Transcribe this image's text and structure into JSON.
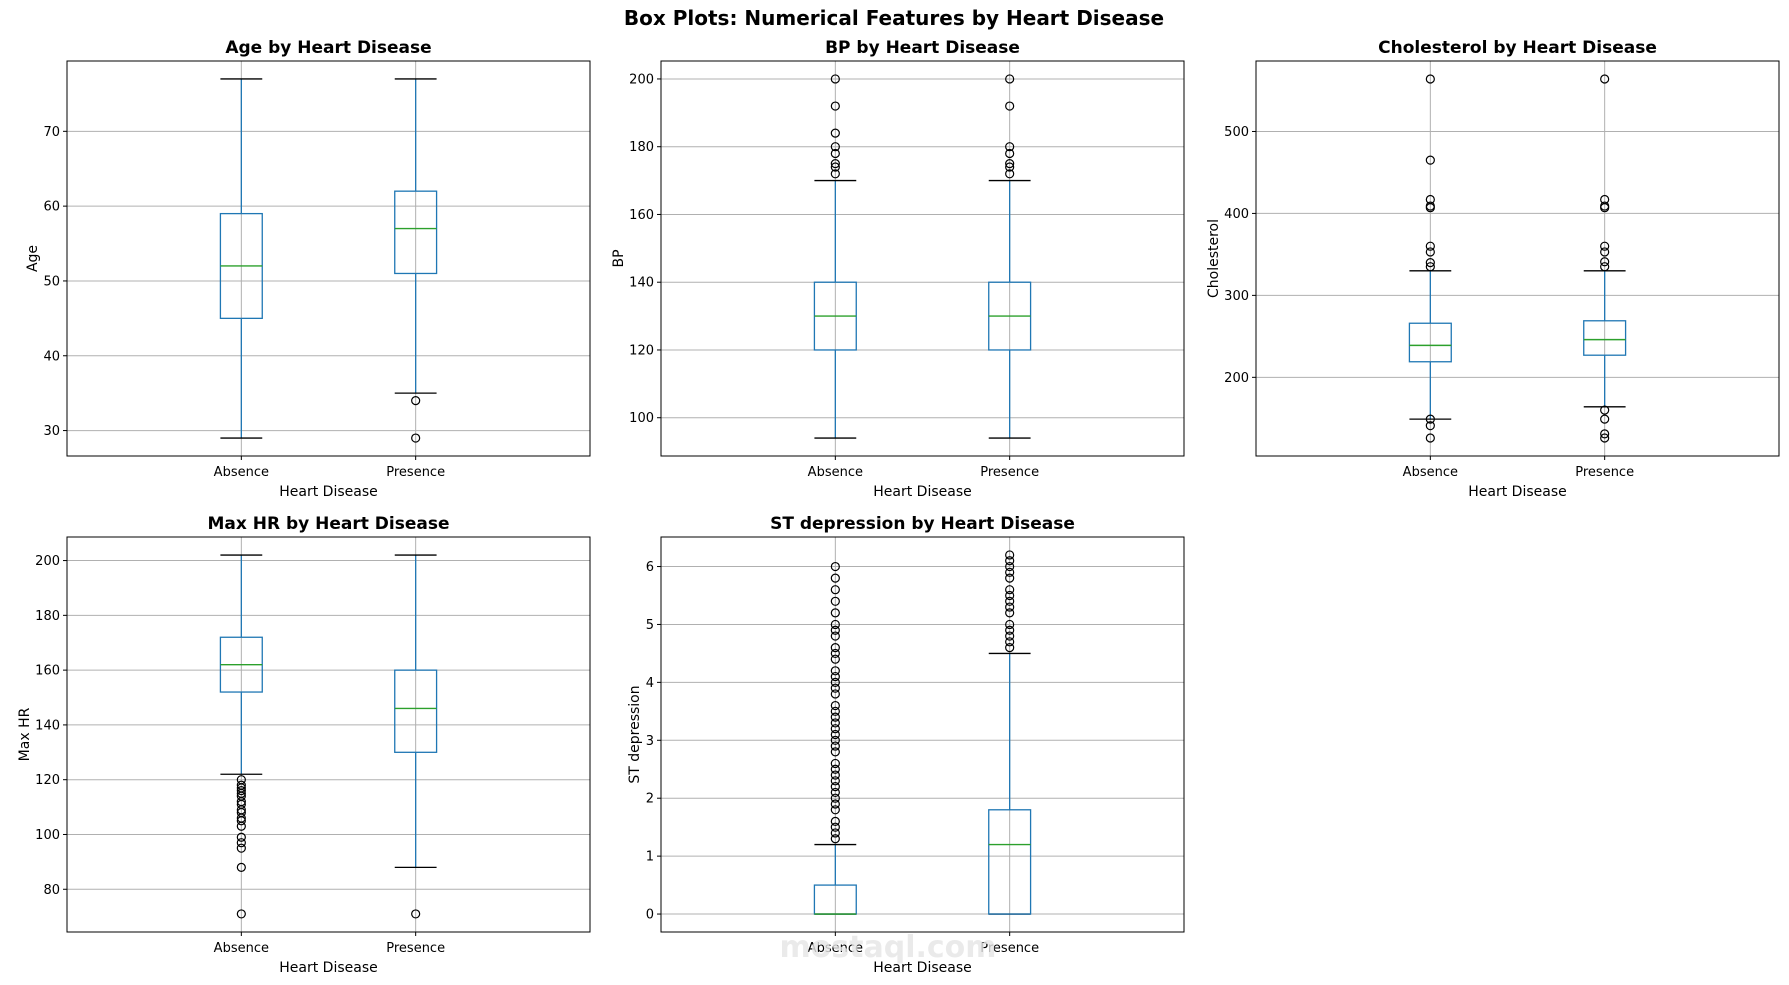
{
  "figure": {
    "suptitle": "Box Plots: Numerical Features by Heart Disease",
    "watermark": "mostaql.com"
  },
  "colors": {
    "box": "#1f77b4",
    "median": "#2ca02c",
    "grid": "#b0b0b0",
    "flier": "#000000"
  },
  "chart_data": [
    {
      "type": "box",
      "title": "Age by Heart Disease",
      "xlabel": "Heart Disease",
      "ylabel": "Age",
      "categories": [
        "Absence",
        "Presence"
      ],
      "ylim": [
        26.6,
        79.4
      ],
      "yticks": [
        30,
        40,
        50,
        60,
        70
      ],
      "grid": true,
      "boxes": [
        {
          "category": "Absence",
          "whisker_low": 29,
          "q1": 45,
          "median": 52,
          "q3": 59,
          "whisker_high": 77,
          "fliers": []
        },
        {
          "category": "Presence",
          "whisker_low": 35,
          "q1": 51,
          "median": 57,
          "q3": 62,
          "whisker_high": 77,
          "fliers": [
            34,
            29
          ]
        }
      ]
    },
    {
      "type": "box",
      "title": "BP by Heart Disease",
      "xlabel": "Heart Disease",
      "ylabel": "BP",
      "categories": [
        "Absence",
        "Presence"
      ],
      "ylim": [
        88.7,
        205.3
      ],
      "yticks": [
        100,
        120,
        140,
        160,
        180,
        200
      ],
      "grid": true,
      "boxes": [
        {
          "category": "Absence",
          "whisker_low": 94,
          "q1": 120,
          "median": 130,
          "q3": 140,
          "whisker_high": 170,
          "fliers": [
            172,
            174,
            175,
            178,
            180,
            184,
            192,
            200
          ]
        },
        {
          "category": "Presence",
          "whisker_low": 94,
          "q1": 120,
          "median": 130,
          "q3": 140,
          "whisker_high": 170,
          "fliers": [
            172,
            174,
            175,
            178,
            180,
            192,
            200
          ]
        }
      ]
    },
    {
      "type": "box",
      "title": "Cholesterol by Heart Disease",
      "xlabel": "Heart Disease",
      "ylabel": "Cholesterol",
      "categories": [
        "Absence",
        "Presence"
      ],
      "ylim": [
        104,
        586
      ],
      "yticks": [
        200,
        300,
        400,
        500
      ],
      "grid": true,
      "boxes": [
        {
          "category": "Absence",
          "whisker_low": 149,
          "q1": 219,
          "median": 239,
          "q3": 266,
          "whisker_high": 330,
          "fliers": [
            126,
            141,
            149,
            335,
            340,
            353,
            360,
            407,
            409,
            417,
            465,
            564
          ]
        },
        {
          "category": "Presence",
          "whisker_low": 164,
          "q1": 227,
          "median": 246,
          "q3": 269,
          "whisker_high": 330,
          "fliers": [
            126,
            131,
            149,
            160,
            335,
            341,
            353,
            360,
            407,
            409,
            417,
            564
          ]
        }
      ]
    },
    {
      "type": "box",
      "title": "Max HR by Heart Disease",
      "xlabel": "Heart Disease",
      "ylabel": "Max HR",
      "categories": [
        "Absence",
        "Presence"
      ],
      "ylim": [
        64.4,
        208.6
      ],
      "yticks": [
        80,
        100,
        120,
        140,
        160,
        180,
        200
      ],
      "grid": true,
      "boxes": [
        {
          "category": "Absence",
          "whisker_low": 122,
          "q1": 152,
          "median": 162,
          "q3": 172,
          "whisker_high": 202,
          "fliers": [
            71,
            88,
            95,
            97,
            99,
            103,
            105,
            106,
            108,
            109,
            111,
            112,
            114,
            115,
            116,
            117,
            118,
            120
          ]
        },
        {
          "category": "Presence",
          "whisker_low": 88,
          "q1": 130,
          "median": 146,
          "q3": 160,
          "whisker_high": 202,
          "fliers": [
            71
          ]
        }
      ]
    },
    {
      "type": "box",
      "title": "ST depression by Heart Disease",
      "xlabel": "Heart Disease",
      "ylabel": "ST depression",
      "categories": [
        "Absence",
        "Presence"
      ],
      "ylim": [
        -0.31,
        6.51
      ],
      "yticks": [
        0,
        1,
        2,
        3,
        4,
        5,
        6
      ],
      "grid": true,
      "boxes": [
        {
          "category": "Absence",
          "whisker_low": 0,
          "q1": 0,
          "median": 0,
          "q3": 0.5,
          "whisker_high": 1.2,
          "fliers": [
            1.3,
            1.4,
            1.5,
            1.6,
            1.8,
            1.9,
            2.0,
            2.1,
            2.2,
            2.3,
            2.4,
            2.5,
            2.6,
            2.8,
            2.9,
            3.0,
            3.1,
            3.2,
            3.3,
            3.4,
            3.5,
            3.6,
            3.8,
            3.9,
            4.0,
            4.1,
            4.2,
            4.4,
            4.5,
            4.6,
            4.8,
            4.9,
            5.0,
            5.2,
            5.4,
            5.6,
            5.8,
            6.0
          ]
        },
        {
          "category": "Presence",
          "whisker_low": 0,
          "q1": 0,
          "median": 1.2,
          "q3": 1.8,
          "whisker_high": 4.5,
          "fliers": [
            4.6,
            4.7,
            4.8,
            4.9,
            5.0,
            5.2,
            5.3,
            5.4,
            5.5,
            5.6,
            5.8,
            5.9,
            6.0,
            6.1,
            6.2
          ]
        }
      ]
    }
  ]
}
